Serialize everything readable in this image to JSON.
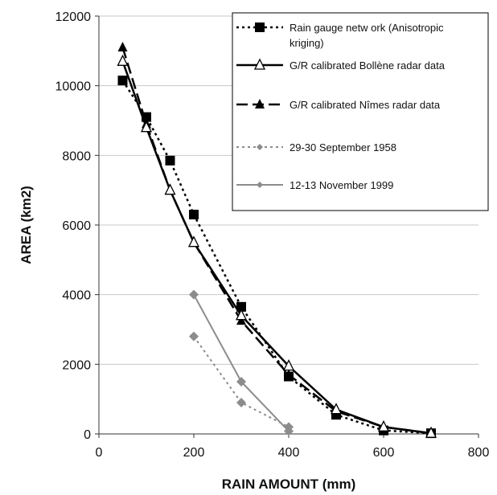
{
  "chart_data": {
    "type": "line",
    "title": "",
    "xlabel": "RAIN AMOUNT (mm)",
    "ylabel": "AREA (km2)",
    "xlim": [
      0,
      800
    ],
    "ylim": [
      0,
      12000
    ],
    "x_ticks": [
      "0",
      "200",
      "400",
      "600",
      "800"
    ],
    "y_ticks": [
      "0",
      "2000",
      "4000",
      "6000",
      "8000",
      "10000",
      "12000"
    ],
    "grid": "horizontal",
    "legend_position": "top-right",
    "series": [
      {
        "name": "Rain gauge netw ork (Anisotropic kriging)",
        "legend_lines": [
          "Rain gauge netw ork (Anisotropic",
          "kriging)"
        ],
        "color": "#000000",
        "line": "dotted",
        "marker": "square",
        "x": [
          50,
          100,
          150,
          200,
          300,
          400,
          500,
          600,
          700
        ],
        "y": [
          10150,
          9100,
          7850,
          6300,
          3650,
          1650,
          550,
          100,
          20
        ]
      },
      {
        "name": "G/R calibrated Bollène radar data",
        "legend_lines": [
          "G/R calibrated Bollène radar data"
        ],
        "color": "#000000",
        "line": "solid",
        "marker": "triangle-open",
        "x": [
          50,
          100,
          150,
          200,
          300,
          400,
          500,
          600,
          700
        ],
        "y": [
          10700,
          8800,
          7000,
          5500,
          3400,
          1950,
          700,
          200,
          20
        ]
      },
      {
        "name": "G/R calibrated Nîmes radar data",
        "legend_lines": [
          "G/R calibrated Nîmes radar data"
        ],
        "color": "#000000",
        "line": "dashed",
        "marker": "triangle-filled",
        "x": [
          50,
          100,
          150,
          200,
          300,
          400,
          500,
          600,
          700
        ],
        "y": [
          11100,
          8900,
          7000,
          5500,
          3250,
          1700,
          650,
          200,
          20
        ]
      },
      {
        "name": "29-30 September 1958",
        "legend_lines": [
          "29-30 September 1958"
        ],
        "color": "#8c8c8c",
        "line": "dotted",
        "marker": "diamond",
        "x": [
          200,
          300,
          400
        ],
        "y": [
          2800,
          900,
          200
        ]
      },
      {
        "name": "12-13 November 1999",
        "legend_lines": [
          "12-13 November 1999"
        ],
        "color": "#8c8c8c",
        "line": "solid",
        "marker": "diamond",
        "x": [
          200,
          300,
          400
        ],
        "y": [
          4000,
          1500,
          80
        ]
      }
    ]
  }
}
